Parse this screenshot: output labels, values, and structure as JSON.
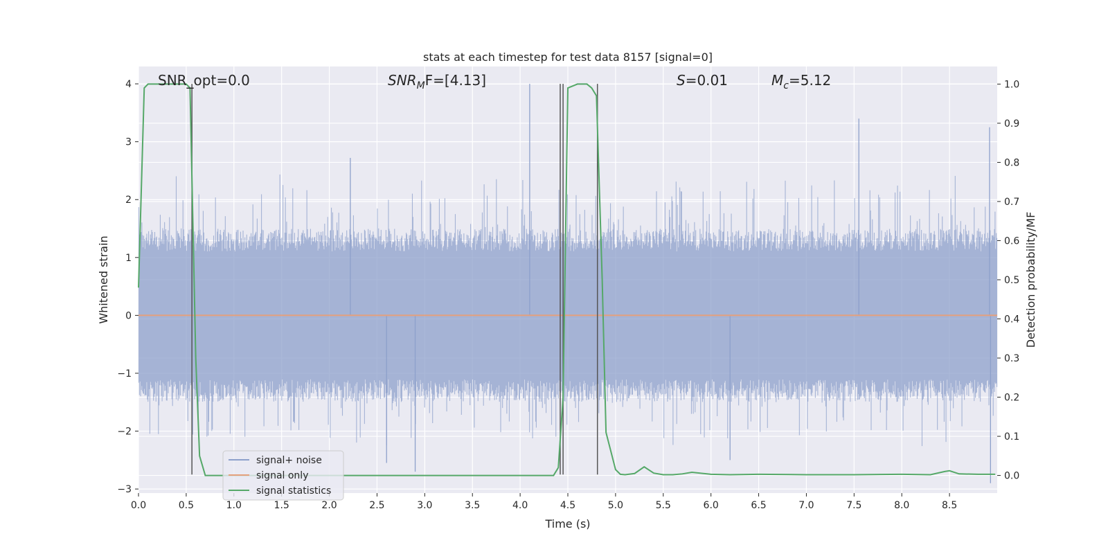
{
  "chart_data": {
    "type": "line",
    "title": "stats at each timestep for test data 8157 [signal=0]",
    "xlabel": "Time (s)",
    "ylabel_left": "Whitened strain",
    "ylabel_right": "Detection probability/MF",
    "xlim": [
      0,
      9
    ],
    "ylim_left": [
      -3.07,
      4.3
    ],
    "ylim_right": [
      -0.045,
      1.045
    ],
    "x_ticks": [
      0.0,
      0.5,
      1.0,
      1.5,
      2.0,
      2.5,
      3.0,
      3.5,
      4.0,
      4.5,
      5.0,
      5.5,
      6.0,
      6.5,
      7.0,
      7.5,
      8.0,
      8.5
    ],
    "x_tick_labels": [
      "0.0",
      "0.5",
      "1.0",
      "1.5",
      "2.0",
      "2.5",
      "3.0",
      "3.5",
      "4.0",
      "4.5",
      "5.0",
      "5.5",
      "6.0",
      "6.5",
      "7.0",
      "7.5",
      "8.0",
      "8.5"
    ],
    "y_left_ticks": [
      4,
      3,
      2,
      1,
      0,
      -1,
      -2,
      -3
    ],
    "y_left_tick_labels": [
      "4",
      "3",
      "2",
      "1",
      "0",
      "−1",
      "−2",
      "−3"
    ],
    "y_right_ticks": [
      1.0,
      0.9,
      0.8,
      0.7,
      0.6,
      0.5,
      0.4,
      0.3,
      0.2,
      0.1,
      0.0
    ],
    "y_right_tick_labels": [
      "1.0",
      "0.9",
      "0.8",
      "0.7",
      "0.6",
      "0.5",
      "0.4",
      "0.3",
      "0.2",
      "0.1",
      "0.0"
    ],
    "grid": true,
    "legend": {
      "placement": "lower-left",
      "entries": [
        {
          "name": "signal+ noise",
          "color": "#8da0cb"
        },
        {
          "name": "signal only",
          "color": "#e5a07c"
        },
        {
          "name": "signal statistics",
          "color": "#55a868"
        }
      ]
    },
    "annotations": {
      "snr_opt": "SNR_opt=0.0",
      "snr_mf_main": "SNR",
      "snr_mf_sub": "M",
      "snr_mf_rest": "F=[4.13]",
      "s_italic": "S",
      "s_rest": "=0.01",
      "mc_main": "M",
      "mc_sub": "c",
      "mc_rest": "=5.12"
    },
    "noise_series": {
      "name": "signal+ noise",
      "axis": "left",
      "color": "#8da0cb",
      "typical_band": [
        -1.3,
        1.3
      ],
      "notable_peaks": [
        {
          "x": 4.1,
          "y": 4.0
        },
        {
          "x": 7.55,
          "y": 3.4
        },
        {
          "x": 8.92,
          "y": 3.25
        },
        {
          "x": 2.22,
          "y": 2.72
        },
        {
          "x": 2.9,
          "y": -2.7
        },
        {
          "x": 8.93,
          "y": -2.9
        },
        {
          "x": 6.2,
          "y": -2.5
        },
        {
          "x": 2.6,
          "y": -2.55
        }
      ]
    },
    "signal_only_series": {
      "name": "signal only",
      "axis": "left",
      "color": "#e5a07c",
      "value": 0
    },
    "statistics_series": {
      "name": "signal statistics",
      "axis": "right",
      "color": "#55a868",
      "x": [
        0.0,
        0.06,
        0.1,
        0.2,
        0.5,
        0.54,
        0.6,
        0.64,
        0.7,
        4.35,
        4.4,
        4.45,
        4.5,
        4.6,
        4.7,
        4.75,
        4.8,
        4.86,
        4.9,
        5.0,
        5.05,
        5.1,
        5.2,
        5.3,
        5.4,
        5.5,
        5.6,
        5.7,
        5.8,
        6.0,
        6.2,
        6.5,
        7.0,
        7.5,
        8.0,
        8.3,
        8.45,
        8.5,
        8.6,
        8.8,
        8.98
      ],
      "y": [
        0.48,
        0.99,
        1.0,
        1.0,
        1.0,
        0.99,
        0.3,
        0.05,
        0.0,
        0.0,
        0.02,
        0.2,
        0.99,
        1.0,
        1.0,
        0.99,
        0.97,
        0.5,
        0.11,
        0.015,
        0.003,
        0.002,
        0.005,
        0.022,
        0.006,
        0.002,
        0.002,
        0.004,
        0.008,
        0.003,
        0.002,
        0.003,
        0.002,
        0.002,
        0.003,
        0.002,
        0.01,
        0.012,
        0.004,
        0.003,
        0.003
      ]
    },
    "vertical_markers": {
      "color": "#555555",
      "x": [
        0.56,
        4.42,
        4.45,
        4.81
      ],
      "y_top": 4.0,
      "y_bottom": -2.75
    }
  }
}
